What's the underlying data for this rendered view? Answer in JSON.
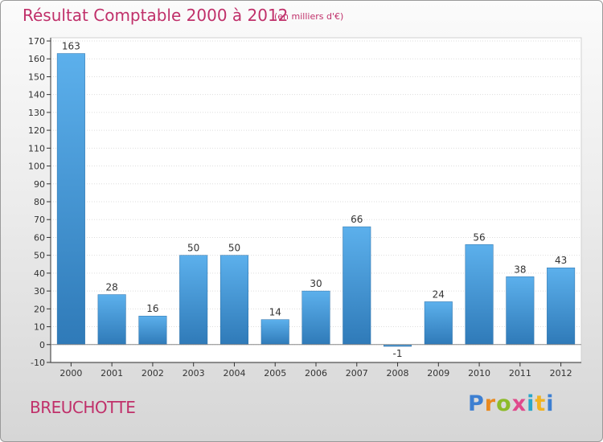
{
  "header": {
    "title": "Résultat Comptable 2000 à 2012",
    "subtitle": "(en milliers d'€)"
  },
  "footer": {
    "commune": "BREUCHOTTE",
    "logo": "Proxiti"
  },
  "colors": {
    "title": "#c0306a",
    "bar_top": "#5cb0ec",
    "bar_bottom": "#2f7ab8",
    "axis": "#333333",
    "grid": "#dddddd"
  },
  "chart_data": {
    "type": "bar",
    "title": "Résultat Comptable 2000 à 2012",
    "subtitle": "(en milliers d'€)",
    "xlabel": "",
    "ylabel": "",
    "categories": [
      "2000",
      "2001",
      "2002",
      "2003",
      "2004",
      "2005",
      "2006",
      "2007",
      "2008",
      "2009",
      "2010",
      "2011",
      "2012"
    ],
    "values": [
      163,
      28,
      16,
      50,
      50,
      14,
      30,
      66,
      -1,
      24,
      56,
      38,
      43
    ],
    "ylim": [
      -10,
      170
    ],
    "yticks": [
      -10,
      0,
      10,
      20,
      30,
      40,
      50,
      60,
      70,
      80,
      90,
      100,
      110,
      120,
      130,
      140,
      150,
      160,
      170
    ],
    "grid": true,
    "legend": "none"
  }
}
